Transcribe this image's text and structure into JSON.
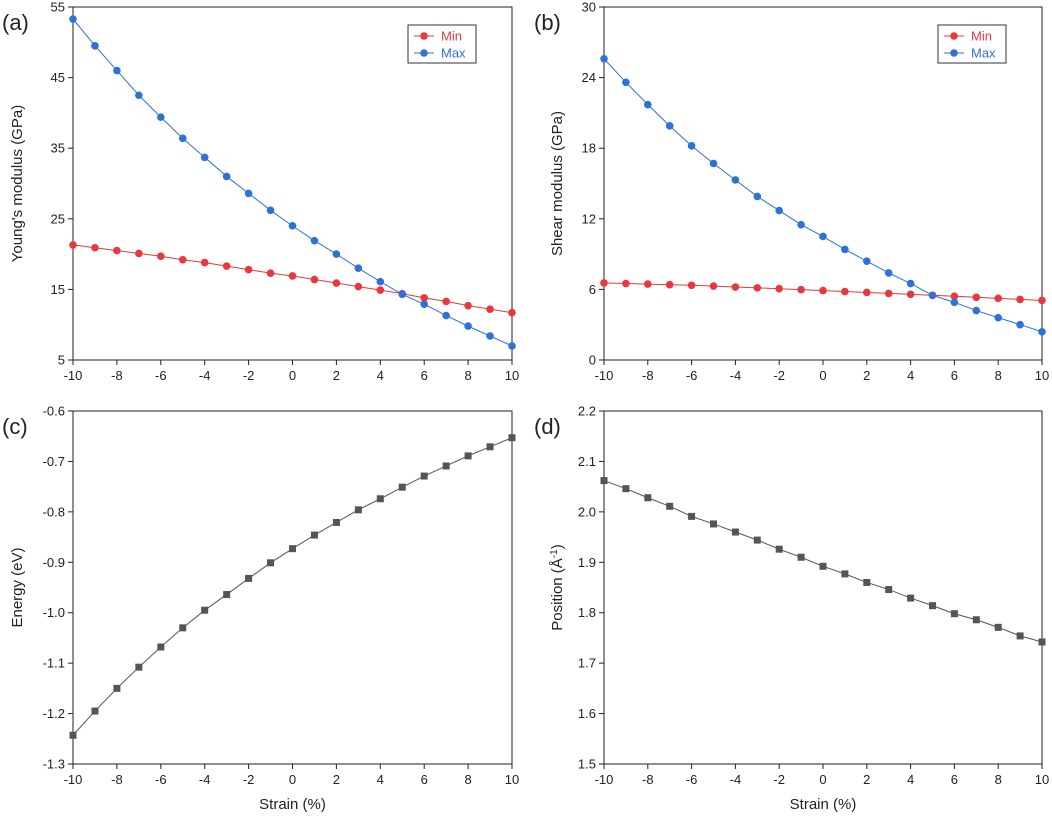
{
  "chart_data": [
    {
      "type": "line",
      "panel_label": "(a)",
      "title": "",
      "xlabel": "",
      "ylabel": "Young's modulus (GPa)",
      "xlim": [
        -10,
        10
      ],
      "ylim": [
        5,
        55
      ],
      "x_ticks": [
        -10,
        -8,
        -6,
        -4,
        -2,
        0,
        2,
        4,
        6,
        8,
        10
      ],
      "y_ticks": [
        5,
        15,
        25,
        35,
        45,
        55
      ],
      "x": [
        -10,
        -9,
        -8,
        -7,
        -6,
        -5,
        -4,
        -3,
        -2,
        -1,
        0,
        1,
        2,
        3,
        4,
        5,
        6,
        7,
        8,
        9,
        10
      ],
      "series": [
        {
          "name": "Min",
          "color": "#e8383d",
          "marker": "circle",
          "values": [
            21.3,
            20.9,
            20.5,
            20.1,
            19.7,
            19.2,
            18.8,
            18.3,
            17.8,
            17.3,
            16.9,
            16.4,
            15.9,
            15.4,
            14.9,
            14.4,
            13.8,
            13.3,
            12.7,
            12.2,
            11.7
          ]
        },
        {
          "name": "Max",
          "color": "#2e72d6",
          "marker": "circle",
          "values": [
            53.3,
            49.5,
            46.0,
            42.5,
            39.4,
            36.4,
            33.7,
            31.0,
            28.6,
            26.2,
            24.0,
            21.9,
            20.0,
            18.0,
            16.1,
            14.3,
            12.9,
            11.3,
            9.8,
            8.4,
            7.0
          ]
        }
      ],
      "legend": "top-right"
    },
    {
      "type": "line",
      "panel_label": "(b)",
      "title": "",
      "xlabel": "",
      "ylabel": "Shear modulus (GPa)",
      "xlim": [
        -10,
        10
      ],
      "ylim": [
        0,
        30
      ],
      "x_ticks": [
        -10,
        -8,
        -6,
        -4,
        -2,
        0,
        2,
        4,
        6,
        8,
        10
      ],
      "y_ticks": [
        0,
        6,
        12,
        18,
        24,
        30
      ],
      "x": [
        -10,
        -9,
        -8,
        -7,
        -6,
        -5,
        -4,
        -3,
        -2,
        -1,
        0,
        1,
        2,
        3,
        4,
        5,
        6,
        7,
        8,
        9,
        10
      ],
      "series": [
        {
          "name": "Min",
          "color": "#e8383d",
          "marker": "circle",
          "values": [
            6.55,
            6.5,
            6.45,
            6.4,
            6.35,
            6.28,
            6.2,
            6.13,
            6.06,
            5.98,
            5.9,
            5.82,
            5.74,
            5.66,
            5.58,
            5.5,
            5.42,
            5.33,
            5.24,
            5.15,
            5.06
          ]
        },
        {
          "name": "Max",
          "color": "#2e72d6",
          "marker": "circle",
          "values": [
            25.6,
            23.6,
            21.7,
            19.9,
            18.2,
            16.7,
            15.3,
            13.9,
            12.7,
            11.5,
            10.5,
            9.4,
            8.4,
            7.4,
            6.5,
            5.5,
            4.9,
            4.2,
            3.6,
            3.0,
            2.4
          ]
        }
      ],
      "legend": "top-right"
    },
    {
      "type": "line",
      "panel_label": "(c)",
      "title": "",
      "xlabel": "Strain (%)",
      "ylabel": "Energy (eV)",
      "xlim": [
        -10,
        10
      ],
      "ylim": [
        -1.3,
        -0.6
      ],
      "x_ticks": [
        -10,
        -8,
        -6,
        -4,
        -2,
        0,
        2,
        4,
        6,
        8,
        10
      ],
      "y_ticks": [
        -1.3,
        -1.2,
        -1.1,
        -1.0,
        -0.9,
        -0.8,
        -0.7,
        -0.6
      ],
      "y_tick_labels": [
        "-1.3",
        "-1.2",
        "-1.1",
        "-1.0",
        "-0.9",
        "-0.8",
        "-0.7",
        "-0.6"
      ],
      "x": [
        -10,
        -9,
        -8,
        -7,
        -6,
        -5,
        -4,
        -3,
        -2,
        -1,
        0,
        1,
        2,
        3,
        4,
        5,
        6,
        7,
        8,
        9,
        10
      ],
      "series": [
        {
          "name": "Energy",
          "color": "#555555",
          "marker": "square",
          "values": [
            -1.243,
            -1.195,
            -1.15,
            -1.108,
            -1.068,
            -1.03,
            -0.995,
            -0.964,
            -0.932,
            -0.901,
            -0.873,
            -0.846,
            -0.821,
            -0.796,
            -0.774,
            -0.751,
            -0.729,
            -0.709,
            -0.689,
            -0.671,
            -0.653
          ]
        }
      ],
      "legend": "none"
    },
    {
      "type": "line",
      "panel_label": "(d)",
      "title": "",
      "xlabel": "Strain (%)",
      "ylabel": "Position (Å",
      "ylabel_superscript": "-1",
      "ylabel_suffix": ")",
      "xlim": [
        -10,
        10
      ],
      "ylim": [
        1.5,
        2.2
      ],
      "x_ticks": [
        -10,
        -8,
        -6,
        -4,
        -2,
        0,
        2,
        4,
        6,
        8,
        10
      ],
      "y_ticks": [
        1.5,
        1.6,
        1.7,
        1.8,
        1.9,
        2.0,
        2.1,
        2.2
      ],
      "y_tick_labels": [
        "1.5",
        "1.6",
        "1.7",
        "1.8",
        "1.9",
        "2.0",
        "2.1",
        "2.2"
      ],
      "x": [
        -10,
        -9,
        -8,
        -7,
        -6,
        -5,
        -4,
        -3,
        -2,
        -1,
        0,
        1,
        2,
        3,
        4,
        5,
        6,
        7,
        8,
        9,
        10
      ],
      "series": [
        {
          "name": "Position",
          "color": "#555555",
          "marker": "square",
          "values": [
            2.062,
            2.046,
            2.028,
            2.011,
            1.991,
            1.976,
            1.96,
            1.944,
            1.926,
            1.91,
            1.892,
            1.877,
            1.86,
            1.846,
            1.829,
            1.814,
            1.798,
            1.786,
            1.771,
            1.754,
            1.742
          ]
        }
      ],
      "legend": "none"
    }
  ]
}
